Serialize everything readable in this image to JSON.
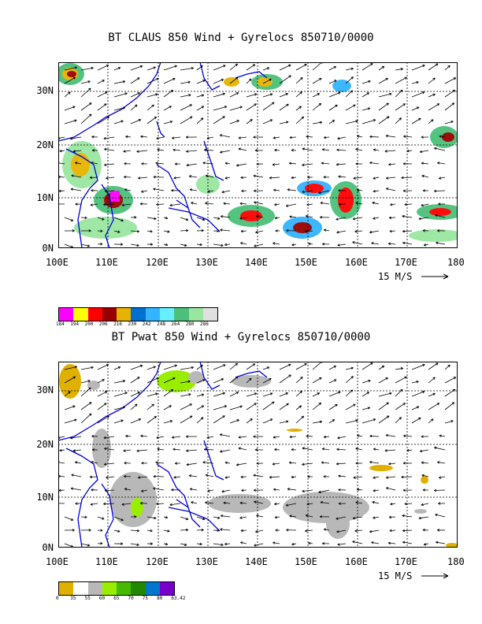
{
  "top": {
    "title": "BT CLAUS 850 Wind + Gyrelocs 850710/0000",
    "lat_labels": [
      "30N",
      "20N",
      "10N",
      "0N"
    ],
    "lon_labels": [
      "100E",
      "110E",
      "120E",
      "130E",
      "140E",
      "150E",
      "160E",
      "170E",
      "180"
    ],
    "scale_label": "15 M/S",
    "legend": {
      "colors": [
        "#ff00ff",
        "#ffff00",
        "#ff0000",
        "#990000",
        "#e6b400",
        "#0070d0",
        "#33b4ff",
        "#66f0ff",
        "#4cc07a",
        "#99e6a0",
        "#e0e0e0"
      ],
      "ticks": [
        "184",
        "194",
        "200",
        "206",
        "216",
        "230",
        "242",
        "248",
        "264",
        "280",
        "286"
      ]
    }
  },
  "bottom": {
    "title": "BT Pwat 850 Wind + Gyrelocs 850710/0000",
    "lat_labels": [
      "30N",
      "20N",
      "10N",
      "0N"
    ],
    "lon_labels": [
      "100E",
      "110E",
      "120E",
      "130E",
      "140E",
      "150E",
      "160E",
      "170E",
      "180"
    ],
    "scale_label": "15 M/S",
    "legend": {
      "colors": [
        "#e0b000",
        "#ffffff",
        "#b8b8b8",
        "#99ee00",
        "#44bb00",
        "#228800",
        "#0077cc",
        "#7700cc"
      ],
      "ticks": [
        "0",
        "35",
        "55",
        "60",
        "65",
        "70",
        "75",
        "80",
        "63.42"
      ]
    }
  }
}
